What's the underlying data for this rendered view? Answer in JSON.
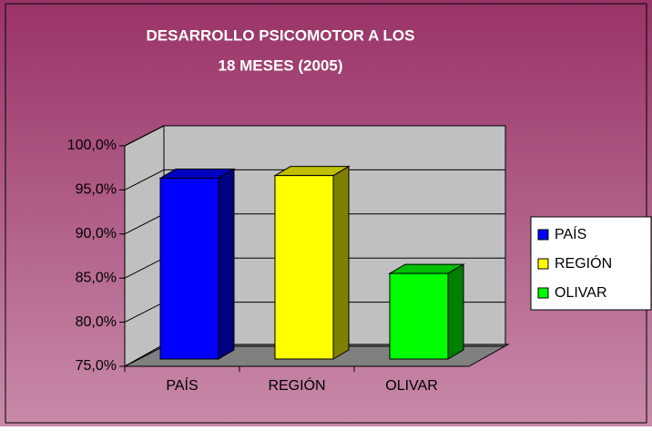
{
  "chart_data": {
    "type": "bar3d",
    "title": [
      "DESARROLLO PSICOMOTOR A LOS",
      "18 MESES (2005)"
    ],
    "categories": [
      "PAÍS",
      "REGIÓN",
      "OLIVAR"
    ],
    "values": [
      95.5,
      95.8,
      84.7
    ],
    "colors": [
      "#0000ff",
      "#ffff00",
      "#00ff00"
    ],
    "ylim": [
      75,
      100
    ],
    "yticks": [
      {
        "value": 75,
        "label": "75,0%"
      },
      {
        "value": 80,
        "label": "80,0%"
      },
      {
        "value": 85,
        "label": "85,0%"
      },
      {
        "value": 90,
        "label": "90,0%"
      },
      {
        "value": 95,
        "label": "95,0%"
      },
      {
        "value": 100,
        "label": "100,0%"
      }
    ],
    "grid": true,
    "legend": "right"
  }
}
